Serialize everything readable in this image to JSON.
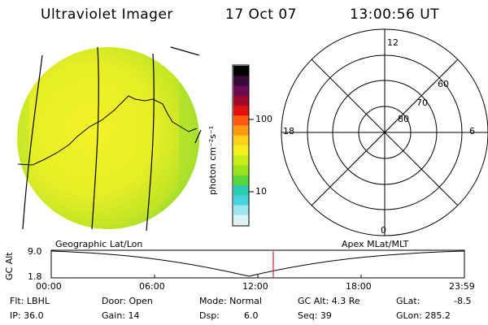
{
  "header": {
    "title": "Ultraviolet Imager",
    "date": "17 Oct 07",
    "time": "13:00:56 UT"
  },
  "colorbar": {
    "unit": "photon cm⁻²s⁻¹",
    "ticks": [
      "100",
      "10"
    ],
    "colors": [
      "#000000",
      "#3a0a3a",
      "#6a0a55",
      "#a00a2a",
      "#e01010",
      "#ff5a10",
      "#ff9a10",
      "#ffd21a",
      "#f2f21a",
      "#c6ec1a",
      "#9ae41a",
      "#5ad83a",
      "#28ccb0",
      "#46d2dc",
      "#9ae6ee",
      "#dcf2f4"
    ]
  },
  "polar": {
    "top_label": "12",
    "bottom_label": "0",
    "left_label": "18",
    "right_label": "6",
    "ring_labels": [
      "60",
      "70",
      "80"
    ]
  },
  "timeline": {
    "y_axis_label": "GC Alt",
    "ytick_top": "9.0",
    "ytick_bottom": "1.8",
    "left_title": "Geographic Lat/Lon",
    "right_title": "Apex MLat/MLT",
    "xticks": [
      "00:00",
      "06:00",
      "12:00",
      "18:00",
      "23:59"
    ],
    "marker_color": "#e02020"
  },
  "info": {
    "flt": "Flt: LBHL",
    "ip": "IP: 36.0",
    "door": "Door: Open",
    "gain": "Gain: 14",
    "mode": "Mode: Normal",
    "dsp_label": "Dsp:",
    "dsp_value": "6.0",
    "gcalt": "GC Alt: 4.3 Re",
    "seq": "Seq: 39",
    "glat_label": "GLat:",
    "glat_value": "-8.5",
    "glon": "GLon: 285.2"
  }
}
